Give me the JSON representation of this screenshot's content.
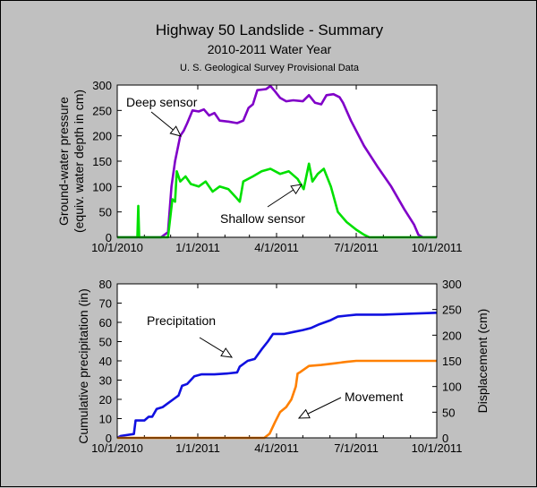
{
  "header": {
    "title": "Highway 50 Landslide - Summary",
    "subtitle": "2010-2011 Water Year",
    "source_note": "U. S. Geological Survey Provisional Data"
  },
  "chart_data": [
    {
      "type": "line",
      "ylabel_line1": "Ground-water pressure",
      "ylabel_line2": "(equiv. water depth in cm)",
      "xlim": [
        "2010-10-01",
        "2011-10-01"
      ],
      "ylim": [
        0,
        300
      ],
      "x_ticks": [
        "10/1/2010",
        "1/1/2011",
        "4/1/2011",
        "7/1/2011",
        "10/1/2011"
      ],
      "x_tick_dates": [
        "2010-10-01",
        "2011-01-01",
        "2011-04-01",
        "2011-07-01",
        "2011-10-01"
      ],
      "y_ticks": [
        0,
        50,
        100,
        150,
        200,
        250,
        300
      ],
      "annotations": [
        {
          "text": "Deep sensor",
          "target": "Deep sensor"
        },
        {
          "text": "Shallow sensor",
          "target": "Shallow sensor"
        }
      ],
      "series": [
        {
          "name": "Deep sensor",
          "color": "#8000c8",
          "points": [
            [
              "2010-10-01",
              0
            ],
            [
              "2010-11-20",
              0
            ],
            [
              "2010-11-28",
              10
            ],
            [
              "2010-12-02",
              100
            ],
            [
              "2010-12-06",
              150
            ],
            [
              "2010-12-12",
              200
            ],
            [
              "2010-12-16",
              210
            ],
            [
              "2010-12-20",
              225
            ],
            [
              "2010-12-26",
              250
            ],
            [
              "2011-01-02",
              248
            ],
            [
              "2011-01-08",
              252
            ],
            [
              "2011-01-14",
              240
            ],
            [
              "2011-01-20",
              245
            ],
            [
              "2011-01-26",
              230
            ],
            [
              "2011-02-05",
              228
            ],
            [
              "2011-02-15",
              225
            ],
            [
              "2011-02-22",
              230
            ],
            [
              "2011-02-28",
              255
            ],
            [
              "2011-03-05",
              262
            ],
            [
              "2011-03-10",
              290
            ],
            [
              "2011-03-20",
              292
            ],
            [
              "2011-03-25",
              298
            ],
            [
              "2011-03-30",
              288
            ],
            [
              "2011-04-05",
              275
            ],
            [
              "2011-04-12",
              268
            ],
            [
              "2011-04-20",
              270
            ],
            [
              "2011-05-01",
              268
            ],
            [
              "2011-05-08",
              280
            ],
            [
              "2011-05-15",
              265
            ],
            [
              "2011-05-22",
              262
            ],
            [
              "2011-05-28",
              280
            ],
            [
              "2011-06-05",
              282
            ],
            [
              "2011-06-12",
              276
            ],
            [
              "2011-06-16",
              265
            ],
            [
              "2011-06-25",
              230
            ],
            [
              "2011-07-10",
              180
            ],
            [
              "2011-07-25",
              140
            ],
            [
              "2011-08-10",
              100
            ],
            [
              "2011-08-25",
              55
            ],
            [
              "2011-09-05",
              25
            ],
            [
              "2011-09-10",
              5
            ],
            [
              "2011-09-15",
              0
            ],
            [
              "2011-10-01",
              0
            ]
          ]
        },
        {
          "name": "Shallow sensor",
          "color": "#00e000",
          "points": [
            [
              "2010-10-01",
              0
            ],
            [
              "2010-10-24",
              0
            ],
            [
              "2010-10-25",
              62
            ],
            [
              "2010-10-26",
              0
            ],
            [
              "2010-11-28",
              0
            ],
            [
              "2010-12-03",
              75
            ],
            [
              "2010-12-06",
              70
            ],
            [
              "2010-12-08",
              130
            ],
            [
              "2010-12-12",
              110
            ],
            [
              "2010-12-18",
              120
            ],
            [
              "2010-12-24",
              105
            ],
            [
              "2011-01-02",
              100
            ],
            [
              "2011-01-10",
              110
            ],
            [
              "2011-01-18",
              90
            ],
            [
              "2011-01-26",
              100
            ],
            [
              "2011-02-05",
              95
            ],
            [
              "2011-02-13",
              80
            ],
            [
              "2011-02-18",
              70
            ],
            [
              "2011-02-22",
              110
            ],
            [
              "2011-03-05",
              120
            ],
            [
              "2011-03-15",
              130
            ],
            [
              "2011-03-25",
              135
            ],
            [
              "2011-04-05",
              125
            ],
            [
              "2011-04-15",
              130
            ],
            [
              "2011-04-25",
              115
            ],
            [
              "2011-05-02",
              95
            ],
            [
              "2011-05-08",
              145
            ],
            [
              "2011-05-12",
              110
            ],
            [
              "2011-05-18",
              125
            ],
            [
              "2011-05-25",
              135
            ],
            [
              "2011-06-02",
              100
            ],
            [
              "2011-06-10",
              50
            ],
            [
              "2011-06-20",
              30
            ],
            [
              "2011-07-01",
              15
            ],
            [
              "2011-07-10",
              5
            ],
            [
              "2011-07-16",
              0
            ],
            [
              "2011-10-01",
              0
            ]
          ]
        }
      ]
    },
    {
      "type": "line",
      "ylabel": "Cumulative precipitation (in)",
      "y2label": "Displacement (cm)",
      "xlim": [
        "2010-10-01",
        "2011-10-01"
      ],
      "ylim": [
        0,
        80
      ],
      "y2lim": [
        0,
        300
      ],
      "x_ticks": [
        "10/1/2010",
        "1/1/2011",
        "4/1/2011",
        "7/1/2011",
        "10/1/2011"
      ],
      "x_tick_dates": [
        "2010-10-01",
        "2011-01-01",
        "2011-04-01",
        "2011-07-01",
        "2011-10-01"
      ],
      "y_ticks": [
        0,
        10,
        20,
        30,
        40,
        50,
        60,
        70,
        80
      ],
      "y2_ticks": [
        0,
        50,
        100,
        150,
        200,
        250,
        300
      ],
      "annotations": [
        {
          "text": "Precipitation",
          "target": "Precipitation"
        },
        {
          "text": "Movement",
          "target": "Movement"
        }
      ],
      "series": [
        {
          "name": "Precipitation",
          "axis": "left",
          "color": "#1010e0",
          "points": [
            [
              "2010-10-01",
              0
            ],
            [
              "2010-10-05",
              1
            ],
            [
              "2010-10-20",
              2
            ],
            [
              "2010-10-22",
              9
            ],
            [
              "2010-11-01",
              9
            ],
            [
              "2010-11-06",
              11
            ],
            [
              "2010-11-10",
              11
            ],
            [
              "2010-11-15",
              15
            ],
            [
              "2010-11-22",
              16
            ],
            [
              "2010-11-28",
              18
            ],
            [
              "2010-12-04",
              20
            ],
            [
              "2010-12-10",
              22
            ],
            [
              "2010-12-14",
              27
            ],
            [
              "2010-12-20",
              28
            ],
            [
              "2010-12-28",
              32
            ],
            [
              "2011-01-05",
              33
            ],
            [
              "2011-01-20",
              33
            ],
            [
              "2011-02-05",
              33.5
            ],
            [
              "2011-02-15",
              34
            ],
            [
              "2011-02-18",
              37
            ],
            [
              "2011-02-27",
              40
            ],
            [
              "2011-03-07",
              41
            ],
            [
              "2011-03-15",
              46
            ],
            [
              "2011-03-22",
              50
            ],
            [
              "2011-03-28",
              54
            ],
            [
              "2011-04-10",
              54
            ],
            [
              "2011-04-20",
              55
            ],
            [
              "2011-05-01",
              56
            ],
            [
              "2011-05-10",
              57
            ],
            [
              "2011-05-20",
              59
            ],
            [
              "2011-06-01",
              61
            ],
            [
              "2011-06-10",
              63
            ],
            [
              "2011-06-20",
              63.5
            ],
            [
              "2011-07-01",
              64
            ],
            [
              "2011-08-01",
              64
            ],
            [
              "2011-09-01",
              64.5
            ],
            [
              "2011-10-01",
              65
            ]
          ]
        },
        {
          "name": "Movement",
          "axis": "right",
          "color": "#ff8000",
          "points": [
            [
              "2010-10-01",
              0
            ],
            [
              "2011-03-18",
              0
            ],
            [
              "2011-03-24",
              8
            ],
            [
              "2011-03-30",
              30
            ],
            [
              "2011-04-05",
              50
            ],
            [
              "2011-04-12",
              60
            ],
            [
              "2011-04-18",
              75
            ],
            [
              "2011-04-23",
              100
            ],
            [
              "2011-04-25",
              125
            ],
            [
              "2011-04-28",
              128
            ],
            [
              "2011-05-08",
              140
            ],
            [
              "2011-05-22",
              142
            ],
            [
              "2011-06-05",
              145
            ],
            [
              "2011-06-20",
              148
            ],
            [
              "2011-07-01",
              150
            ],
            [
              "2011-10-01",
              150
            ]
          ]
        }
      ]
    }
  ]
}
